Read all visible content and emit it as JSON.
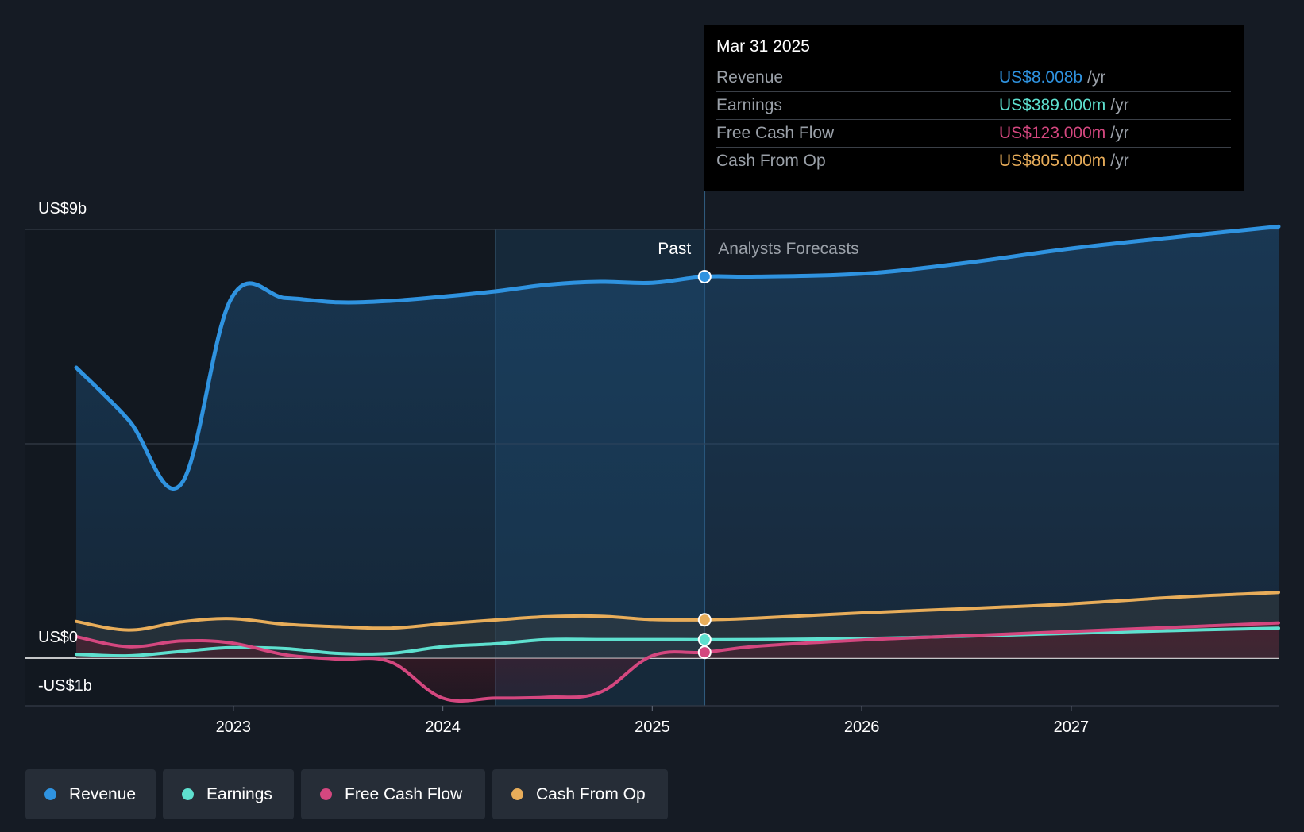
{
  "colors": {
    "background": "#151b24",
    "revenue": "#2f93e0",
    "earnings": "#5ee0cf",
    "fcf": "#d4477f",
    "cfo": "#e8ad5a",
    "grid": "#343b47"
  },
  "tooltip": {
    "date": "Mar 31 2025",
    "rows": [
      {
        "label": "Revenue",
        "value": "US$8.008b",
        "unit": "/yr",
        "color": "#2f93e0"
      },
      {
        "label": "Earnings",
        "value": "US$389.000m",
        "unit": "/yr",
        "color": "#5ee0cf"
      },
      {
        "label": "Free Cash Flow",
        "value": "US$123.000m",
        "unit": "/yr",
        "color": "#d4477f"
      },
      {
        "label": "Cash From Op",
        "value": "US$805.000m",
        "unit": "/yr",
        "color": "#e8ad5a"
      }
    ]
  },
  "legend": [
    {
      "label": "Revenue",
      "color": "#2f93e0"
    },
    {
      "label": "Earnings",
      "color": "#5ee0cf"
    },
    {
      "label": "Free Cash Flow",
      "color": "#d4477f"
    },
    {
      "label": "Cash From Op",
      "color": "#e8ad5a"
    }
  ],
  "chart_data": {
    "type": "line",
    "y_tick_labels": [
      "US$9b",
      "US$0",
      "-US$1b"
    ],
    "x_tick_labels": [
      "2023",
      "2024",
      "2025",
      "2026",
      "2027"
    ],
    "region_labels": {
      "past": "Past",
      "forecast": "Analysts Forecasts"
    },
    "ylim": [
      -1,
      9
    ],
    "xlim": [
      2022.24,
      2027.99
    ],
    "past_end": 2025.25,
    "highlight_start": 2024.25,
    "grid": true,
    "legend_position": "bottom",
    "series": [
      {
        "name": "Revenue",
        "key": "revenue",
        "points": [
          [
            2022.25,
            6.1
          ],
          [
            2022.5,
            5.0
          ],
          [
            2022.75,
            3.65
          ],
          [
            2022.99,
            7.55
          ],
          [
            2023.25,
            7.56
          ],
          [
            2023.5,
            7.47
          ],
          [
            2023.75,
            7.5
          ],
          [
            2024.0,
            7.59
          ],
          [
            2024.25,
            7.7
          ],
          [
            2024.5,
            7.84
          ],
          [
            2024.75,
            7.9
          ],
          [
            2025.0,
            7.88
          ],
          [
            2025.25,
            8.008
          ],
          [
            2025.5,
            8.01
          ],
          [
            2026.0,
            8.07
          ],
          [
            2026.5,
            8.3
          ],
          [
            2027.0,
            8.6
          ],
          [
            2027.5,
            8.84
          ],
          [
            2027.99,
            9.06
          ]
        ]
      },
      {
        "name": "Earnings",
        "key": "earnings",
        "points": [
          [
            2022.25,
            0.08
          ],
          [
            2022.5,
            0.05
          ],
          [
            2022.75,
            0.14
          ],
          [
            2022.99,
            0.22
          ],
          [
            2023.25,
            0.2
          ],
          [
            2023.5,
            0.1
          ],
          [
            2023.75,
            0.1
          ],
          [
            2024.0,
            0.24
          ],
          [
            2024.25,
            0.3
          ],
          [
            2024.5,
            0.39
          ],
          [
            2024.75,
            0.39
          ],
          [
            2025.0,
            0.39
          ],
          [
            2025.25,
            0.389
          ],
          [
            2025.5,
            0.39
          ],
          [
            2026.0,
            0.41
          ],
          [
            2026.5,
            0.46
          ],
          [
            2027.0,
            0.52
          ],
          [
            2027.5,
            0.58
          ],
          [
            2027.99,
            0.63
          ]
        ]
      },
      {
        "name": "Free Cash Flow",
        "key": "fcf",
        "points": [
          [
            2022.25,
            0.45
          ],
          [
            2022.5,
            0.24
          ],
          [
            2022.75,
            0.36
          ],
          [
            2022.99,
            0.32
          ],
          [
            2023.25,
            0.07
          ],
          [
            2023.5,
            -0.02
          ],
          [
            2023.75,
            -0.08
          ],
          [
            2024.0,
            -0.84
          ],
          [
            2024.25,
            -0.84
          ],
          [
            2024.5,
            -0.82
          ],
          [
            2024.75,
            -0.72
          ],
          [
            2025.0,
            0.05
          ],
          [
            2025.25,
            0.123
          ],
          [
            2025.5,
            0.25
          ],
          [
            2026.0,
            0.38
          ],
          [
            2026.5,
            0.47
          ],
          [
            2027.0,
            0.56
          ],
          [
            2027.5,
            0.65
          ],
          [
            2027.99,
            0.74
          ]
        ]
      },
      {
        "name": "Cash From Op",
        "key": "cfo",
        "points": [
          [
            2022.25,
            0.77
          ],
          [
            2022.5,
            0.59
          ],
          [
            2022.75,
            0.76
          ],
          [
            2022.99,
            0.83
          ],
          [
            2023.25,
            0.71
          ],
          [
            2023.5,
            0.66
          ],
          [
            2023.75,
            0.63
          ],
          [
            2024.0,
            0.72
          ],
          [
            2024.25,
            0.8
          ],
          [
            2024.5,
            0.87
          ],
          [
            2024.75,
            0.88
          ],
          [
            2025.0,
            0.81
          ],
          [
            2025.25,
            0.805
          ],
          [
            2025.5,
            0.84
          ],
          [
            2026.0,
            0.95
          ],
          [
            2026.5,
            1.04
          ],
          [
            2027.0,
            1.14
          ],
          [
            2027.5,
            1.28
          ],
          [
            2027.99,
            1.38
          ]
        ]
      }
    ]
  }
}
